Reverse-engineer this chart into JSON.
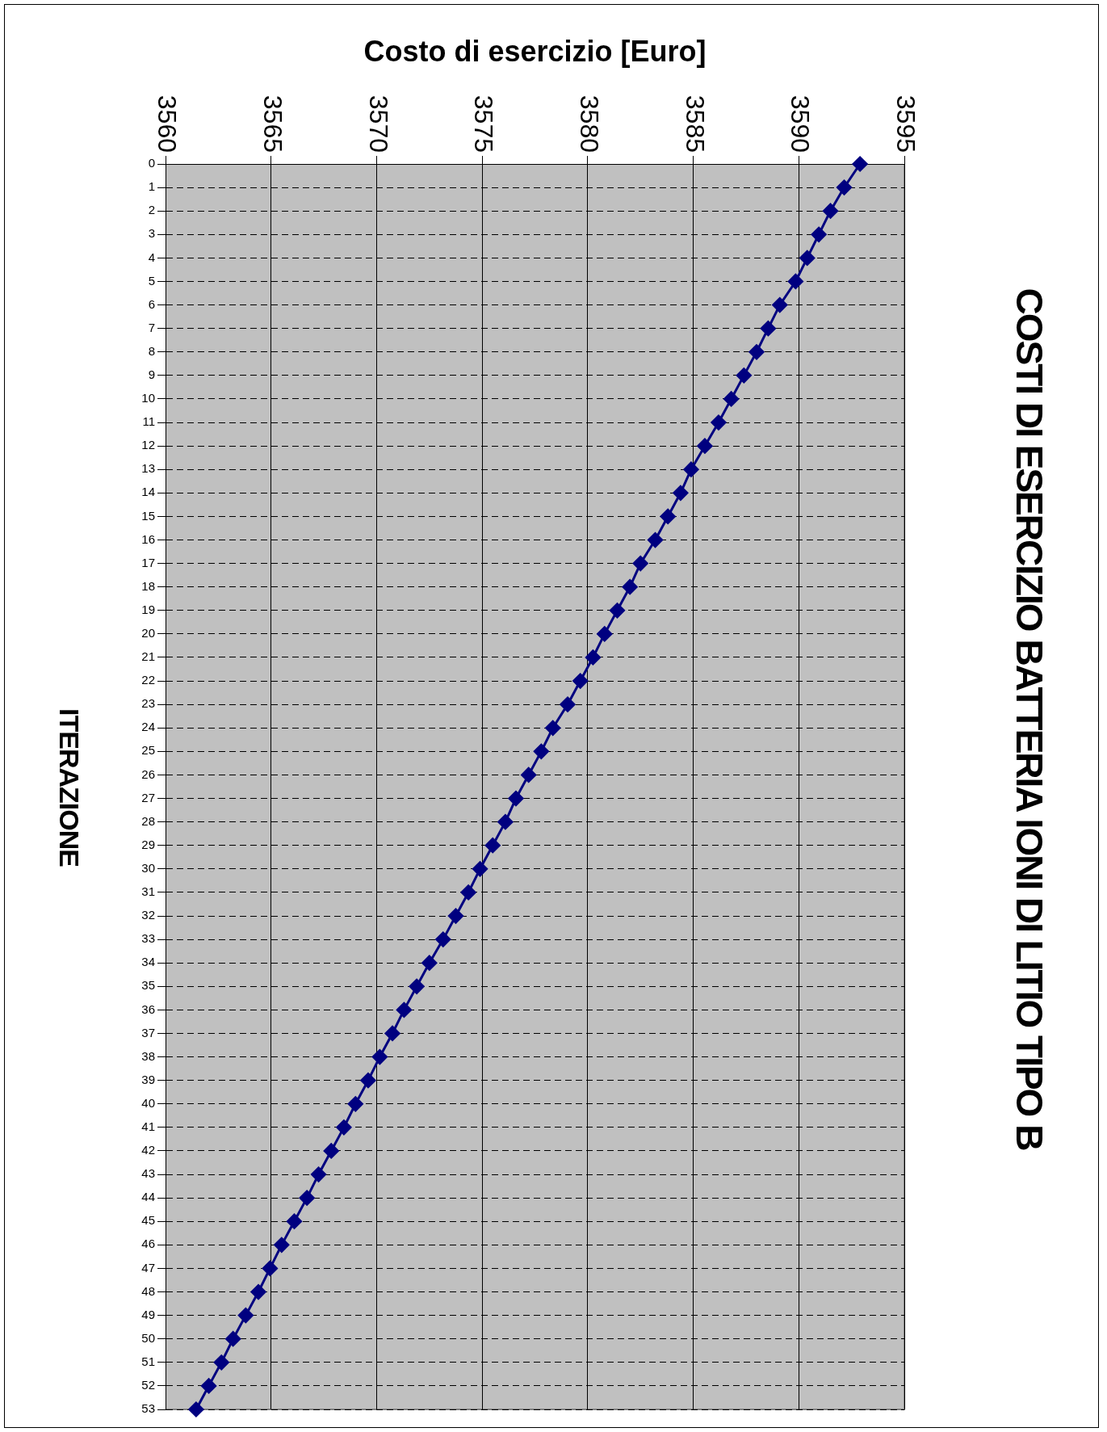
{
  "chart_data": {
    "type": "line",
    "orientation": "horizontal",
    "title": "COSTI DI ESERCIZIO BATTERIA IONI DI LITIO TIPO B",
    "xlabel": "Costo di esercizio [Euro]",
    "ylabel": "ITERAZIONE",
    "categories": [
      "0",
      "1",
      "2",
      "3",
      "4",
      "5",
      "6",
      "7",
      "8",
      "9",
      "10",
      "11",
      "12",
      "13",
      "14",
      "15",
      "16",
      "17",
      "18",
      "19",
      "20",
      "21",
      "22",
      "23",
      "24",
      "25",
      "26",
      "27",
      "28",
      "29",
      "30",
      "31",
      "32",
      "33",
      "34",
      "35",
      "36",
      "37",
      "38",
      "39",
      "40",
      "41",
      "42",
      "43",
      "44",
      "45",
      "46",
      "47",
      "48",
      "49",
      "50",
      "51",
      "52",
      "53"
    ],
    "series": [
      {
        "color": "#000080",
        "values": [
          3592.9,
          3592.15,
          3591.5,
          3590.95,
          3590.4,
          3589.85,
          3589.1,
          3588.55,
          3588.0,
          3587.4,
          3586.8,
          3586.2,
          3585.55,
          3584.9,
          3584.4,
          3583.8,
          3583.2,
          3582.5,
          3582.0,
          3581.4,
          3580.8,
          3580.25,
          3579.65,
          3579.05,
          3578.35,
          3577.8,
          3577.2,
          3576.6,
          3576.1,
          3575.5,
          3574.9,
          3574.35,
          3573.75,
          3573.15,
          3572.5,
          3571.9,
          3571.3,
          3570.75,
          3570.15,
          3569.6,
          3569.0,
          3568.45,
          3567.85,
          3567.25,
          3566.7,
          3566.1,
          3565.5,
          3564.95,
          3564.4,
          3563.8,
          3563.2,
          3562.65,
          3562.05,
          3561.45
        ]
      }
    ],
    "xlim": [
      3560,
      3595
    ],
    "xticks": [
      3560,
      3565,
      3570,
      3575,
      3580,
      3585,
      3590,
      3595
    ],
    "grid": true,
    "marker": "diamond",
    "line_style": "solid",
    "legend": false
  }
}
